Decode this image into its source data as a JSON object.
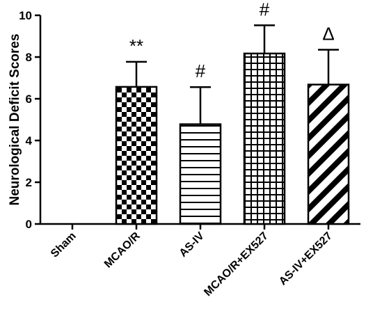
{
  "chart_data": {
    "type": "bar",
    "ylabel": "Neurological Deficit Scores",
    "xlabel": "",
    "ylim": [
      0,
      10
    ],
    "yticks": [
      0,
      2,
      4,
      6,
      8,
      10
    ],
    "categories": [
      "Sham",
      "MCAO/R",
      "AS-IV",
      "MCAO/R+EX527",
      "AS-IV+EX527"
    ],
    "values": [
      0,
      6.57,
      4.78,
      8.17,
      6.68
    ],
    "errors": [
      0,
      1.2,
      1.78,
      1.35,
      1.67
    ],
    "patterns": [
      "none",
      "checker",
      "horizontal",
      "grid",
      "diagonal"
    ],
    "annotations": [
      "",
      "**",
      "#",
      "#",
      "Δ"
    ],
    "grid": false
  }
}
